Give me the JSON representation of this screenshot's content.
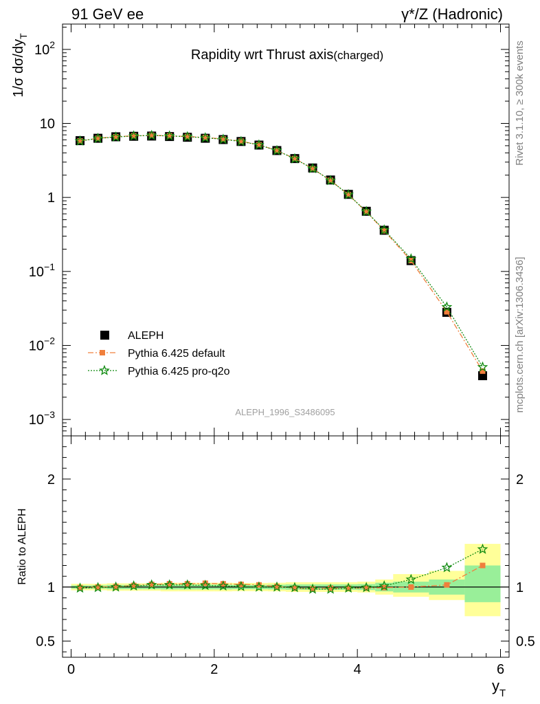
{
  "header": {
    "left": "91 GeV ee",
    "right": "γ*/Z (Hadronic)"
  },
  "side_labels": {
    "rivet": "Rivet 3.1.10, ≥ 300k events",
    "mcplots": "mcplots.cern.ch [arXiv:1306.3436]"
  },
  "chart_data": [
    {
      "panel": "main",
      "type": "scatter",
      "title": "Rapidity wrt Thrust axis",
      "title_suffix": "(charged)",
      "ylabel": "1/σ dσ/dy",
      "ylabel_sub": "T",
      "yscale": "log",
      "ylim": [
        0.0006,
        220
      ],
      "xlim": [
        -0.12,
        6.12
      ],
      "y_ticks": [
        {
          "value": 0.001,
          "base": "10",
          "exp": "−3"
        },
        {
          "value": 0.01,
          "base": "10",
          "exp": "−2"
        },
        {
          "value": 0.1,
          "base": "10",
          "exp": "−1"
        },
        {
          "value": 1,
          "base": "1",
          "exp": ""
        },
        {
          "value": 10,
          "base": "10",
          "exp": ""
        },
        {
          "value": 100,
          "base": "10",
          "exp": "2"
        }
      ],
      "watermark": "ALEPH_1996_S3486095",
      "legend_position": "lower-left",
      "x": [
        0.125,
        0.375,
        0.625,
        0.875,
        1.125,
        1.375,
        1.625,
        1.875,
        2.125,
        2.375,
        2.625,
        2.875,
        3.125,
        3.375,
        3.625,
        3.875,
        4.125,
        4.375,
        4.75,
        5.25,
        5.75
      ],
      "series": [
        {
          "name": "ALEPH",
          "marker": "square",
          "color": "#000000",
          "values": [
            5.85,
            6.3,
            6.6,
            6.7,
            6.75,
            6.65,
            6.5,
            6.3,
            6.05,
            5.7,
            5.1,
            4.3,
            3.35,
            2.5,
            1.72,
            1.1,
            0.65,
            0.36,
            0.14,
            0.028,
            0.0039
          ]
        },
        {
          "name": "Pythia 6.425 default",
          "marker": "square-small",
          "color": "#f07f3c",
          "dash": "8,3,2,3",
          "values": [
            5.8,
            6.3,
            6.6,
            6.8,
            6.9,
            6.8,
            6.65,
            6.45,
            6.15,
            5.75,
            5.15,
            4.3,
            3.35,
            2.45,
            1.7,
            1.09,
            0.64,
            0.355,
            0.14,
            0.0285,
            0.0045
          ]
        },
        {
          "name": "Pythia 6.425 pro-q2o",
          "marker": "star",
          "color": "#0f8a0f",
          "dash": "2,2",
          "values": [
            5.78,
            6.27,
            6.55,
            6.78,
            6.88,
            6.78,
            6.62,
            6.4,
            6.1,
            5.7,
            5.12,
            4.3,
            3.33,
            2.45,
            1.69,
            1.09,
            0.645,
            0.364,
            0.148,
            0.033,
            0.0051
          ]
        }
      ]
    },
    {
      "panel": "ratio",
      "type": "scatter",
      "ylabel": "Ratio to ALEPH",
      "xlabel": "y",
      "xlabel_sub": "T",
      "ylim": [
        0.35,
        2.4
      ],
      "xlim": [
        -0.12,
        6.12
      ],
      "x_ticks": [
        0,
        2,
        4,
        6
      ],
      "y_ticks": [
        0.5,
        1,
        2
      ],
      "y_tick_labels": [
        "0.5",
        "1",
        "2"
      ],
      "bands": {
        "edges": [
          0,
          0.25,
          0.5,
          0.75,
          1.0,
          1.25,
          1.5,
          1.75,
          2.0,
          2.25,
          2.5,
          2.75,
          3.0,
          3.25,
          3.5,
          3.75,
          4.0,
          4.25,
          4.5,
          5.0,
          5.5,
          6.0
        ],
        "inner": [
          [
            0.985,
            1.015
          ],
          [
            0.985,
            1.015
          ],
          [
            0.98,
            1.02
          ],
          [
            0.98,
            1.02
          ],
          [
            0.98,
            1.02
          ],
          [
            0.978,
            1.022
          ],
          [
            0.978,
            1.022
          ],
          [
            0.978,
            1.022
          ],
          [
            0.978,
            1.022
          ],
          [
            0.98,
            1.02
          ],
          [
            0.98,
            1.02
          ],
          [
            0.978,
            1.022
          ],
          [
            0.975,
            1.025
          ],
          [
            0.975,
            1.025
          ],
          [
            0.975,
            1.025
          ],
          [
            0.975,
            1.025
          ],
          [
            0.972,
            1.028
          ],
          [
            0.96,
            1.04
          ],
          [
            0.95,
            1.05
          ],
          [
            0.93,
            1.07
          ],
          [
            0.86,
            1.2
          ]
        ],
        "outer": [
          [
            0.97,
            1.03
          ],
          [
            0.97,
            1.03
          ],
          [
            0.965,
            1.035
          ],
          [
            0.965,
            1.035
          ],
          [
            0.965,
            1.035
          ],
          [
            0.96,
            1.04
          ],
          [
            0.96,
            1.04
          ],
          [
            0.96,
            1.04
          ],
          [
            0.96,
            1.04
          ],
          [
            0.962,
            1.038
          ],
          [
            0.962,
            1.038
          ],
          [
            0.96,
            1.04
          ],
          [
            0.955,
            1.045
          ],
          [
            0.955,
            1.045
          ],
          [
            0.955,
            1.045
          ],
          [
            0.955,
            1.045
          ],
          [
            0.95,
            1.05
          ],
          [
            0.93,
            1.07
          ],
          [
            0.91,
            1.12
          ],
          [
            0.88,
            1.15
          ],
          [
            0.73,
            1.4
          ]
        ],
        "inner_color": "#99ef99",
        "outer_color": "#ffff99"
      },
      "series": [
        {
          "name": "Pythia 6.425 default",
          "marker": "square-small",
          "color": "#f07f3c",
          "dash": "8,3,2,3",
          "values": [
            0.995,
            1.0,
            1.005,
            1.015,
            1.025,
            1.03,
            1.03,
            1.035,
            1.03,
            1.025,
            1.02,
            1.005,
            0.99,
            0.985,
            0.99,
            0.99,
            0.99,
            0.995,
            1.0,
            1.02,
            1.2
          ]
        },
        {
          "name": "Pythia 6.425 pro-q2o",
          "marker": "star",
          "color": "#0f8a0f",
          "dash": "2,2",
          "values": [
            0.99,
            0.995,
            1.0,
            1.01,
            1.02,
            1.02,
            1.02,
            1.015,
            1.01,
            1.005,
            1.0,
            1.0,
            0.995,
            0.98,
            0.98,
            0.99,
            0.995,
            1.01,
            1.07,
            1.18,
            1.35
          ]
        }
      ]
    }
  ]
}
